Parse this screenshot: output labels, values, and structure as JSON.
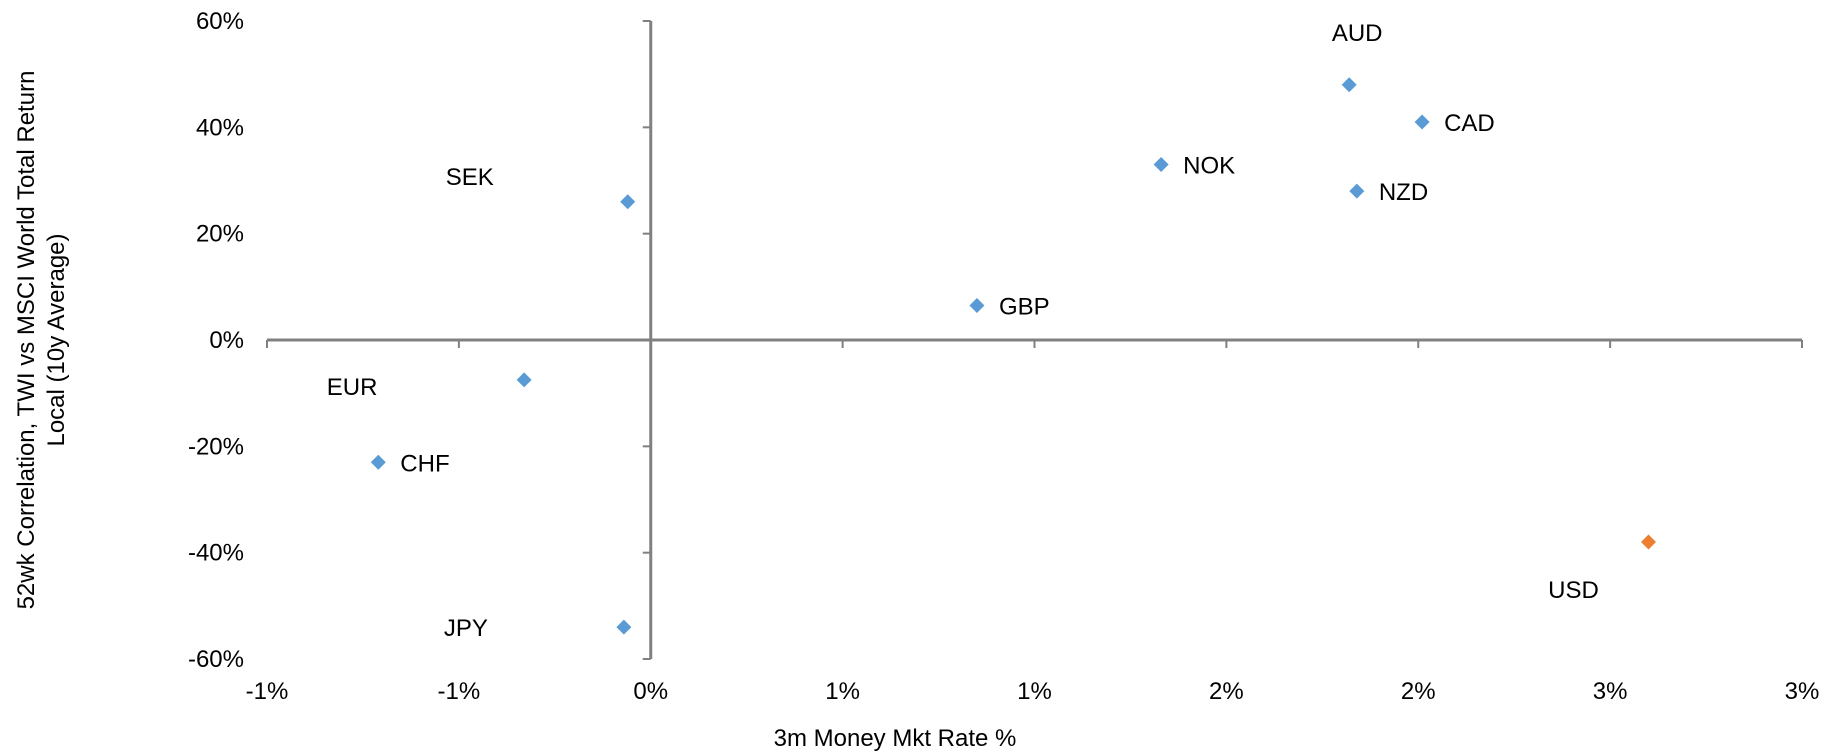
{
  "chart_data": {
    "type": "scatter",
    "title": "",
    "xlabel": "3m Money Mkt Rate %",
    "ylabel_lines": [
      "52wk Correlation, TWI vs MSCI World Total Return",
      "Local (10y Average)"
    ],
    "xlim": [
      -1.0,
      3.0
    ],
    "ylim": [
      -60,
      60
    ],
    "x_ticks": [
      -1.0,
      -0.5,
      0.0,
      0.5,
      1.0,
      1.5,
      2.0,
      2.5,
      3.0
    ],
    "x_tick_labels": [
      "-1%",
      "-1%",
      "0%",
      "1%",
      "1%",
      "2%",
      "2%",
      "3%",
      "3%"
    ],
    "y_ticks": [
      60,
      40,
      20,
      0,
      -20,
      -40,
      -60
    ],
    "y_tick_labels": [
      "60%",
      "40%",
      "20%",
      "0%",
      "-20%",
      "-40%",
      "-60%"
    ],
    "grid": false,
    "legend": "none",
    "colors": {
      "default": "#5b9bd5",
      "highlight": "#ed7d31",
      "axis": "#808080"
    },
    "points": [
      {
        "label": "AUD",
        "x": 1.82,
        "y": 48.0,
        "label_pos": "above",
        "highlight": false
      },
      {
        "label": "CAD",
        "x": 2.01,
        "y": 41.0,
        "label_pos": "right",
        "highlight": false
      },
      {
        "label": "NOK",
        "x": 1.33,
        "y": 33.0,
        "label_pos": "right",
        "highlight": false
      },
      {
        "label": "NZD",
        "x": 1.84,
        "y": 28.0,
        "label_pos": "right",
        "highlight": false
      },
      {
        "label": "SEK",
        "x": -0.06,
        "y": 26.0,
        "label_pos": "left-above",
        "highlight": false
      },
      {
        "label": "GBP",
        "x": 0.85,
        "y": 6.5,
        "label_pos": "right",
        "highlight": false
      },
      {
        "label": "EUR",
        "x": -0.33,
        "y": -7.5,
        "label_pos": "left-below",
        "highlight": false
      },
      {
        "label": "CHF",
        "x": -0.71,
        "y": -23.0,
        "label_pos": "right",
        "highlight": false
      },
      {
        "label": "JPY",
        "x": -0.07,
        "y": -54.0,
        "label_pos": "left",
        "highlight": false
      },
      {
        "label": "USD",
        "x": 2.6,
        "y": -38.0,
        "label_pos": "left-below",
        "highlight": true
      }
    ]
  }
}
